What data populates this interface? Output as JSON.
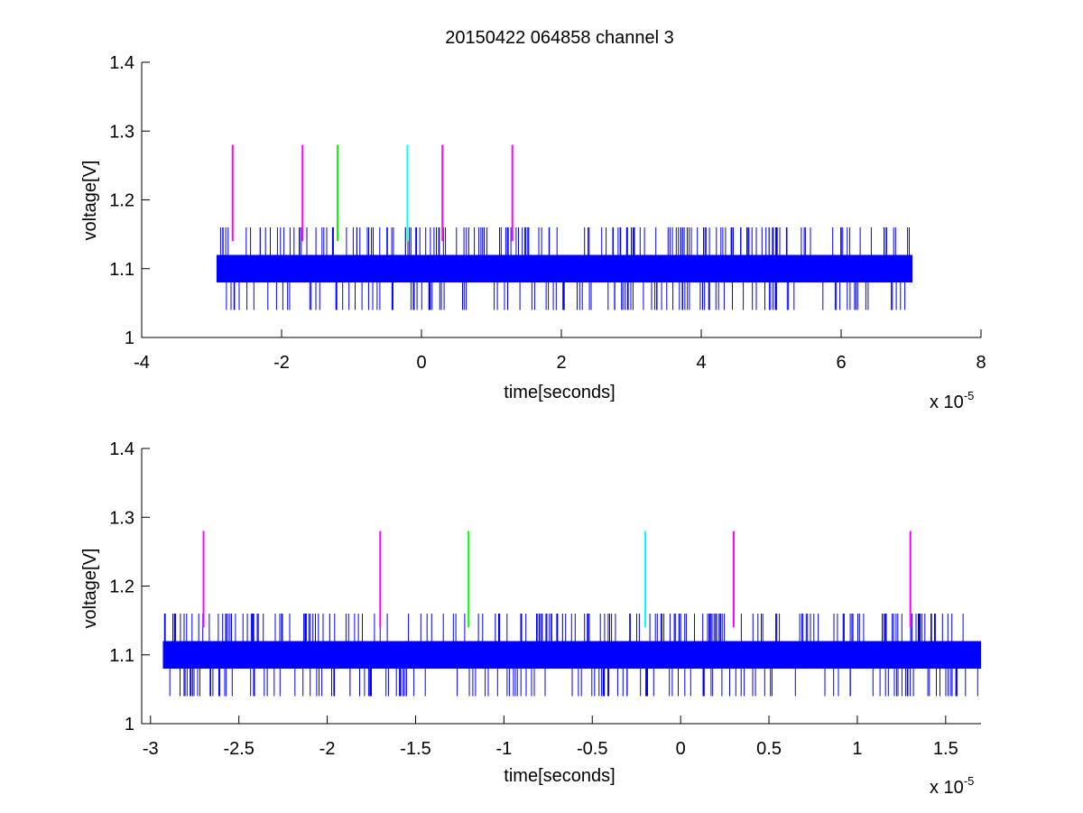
{
  "title": "20150422 064858 channel 3",
  "chart_data": [
    {
      "type": "line",
      "xlabel": "time[seconds]",
      "ylabel": "voltage[V]",
      "x_multiplier_label": "x 10",
      "x_multiplier_exp": "-5",
      "xlim": [
        -4,
        8
      ],
      "ylim": [
        1,
        1.4
      ],
      "xticks": [
        -4,
        -2,
        0,
        2,
        4,
        6,
        8
      ],
      "xtick_labels": [
        "-4",
        "-2",
        "0",
        "2",
        "4",
        "6",
        "8"
      ],
      "yticks": [
        1,
        1.1,
        1.2,
        1.3,
        1.4
      ],
      "ytick_labels": [
        "1",
        "1.1",
        "1.2",
        "1.3",
        "1.4"
      ],
      "series": [
        {
          "color": "#0000ff",
          "signal": {
            "x_range": [
              -2.93,
              7.02
            ],
            "band": [
              1.08,
              1.12
            ],
            "upper_spike": 1.16,
            "lower_spike": 1.04
          }
        }
      ],
      "markers": [
        {
          "x": -2.7,
          "y": [
            1.14,
            1.28
          ],
          "color": "#ff00ff"
        },
        {
          "x": -1.7,
          "y": [
            1.14,
            1.28
          ],
          "color": "#ff00ff"
        },
        {
          "x": -1.2,
          "y": [
            1.14,
            1.28
          ],
          "color": "#00ff00"
        },
        {
          "x": -0.2,
          "y": [
            1.14,
            1.28
          ],
          "color": "#00ffff"
        },
        {
          "x": 0.3,
          "y": [
            1.14,
            1.28
          ],
          "color": "#ff00ff"
        },
        {
          "x": 1.3,
          "y": [
            1.14,
            1.28
          ],
          "color": "#ff00ff"
        }
      ],
      "grid": false
    },
    {
      "type": "line",
      "xlabel": "time[seconds]",
      "ylabel": "voltage[V]",
      "x_multiplier_label": "x 10",
      "x_multiplier_exp": "-5",
      "xlim": [
        -3.05,
        1.7
      ],
      "ylim": [
        1,
        1.4
      ],
      "xticks": [
        -3,
        -2.5,
        -2,
        -1.5,
        -1,
        -0.5,
        0,
        0.5,
        1,
        1.5
      ],
      "xtick_labels": [
        "-3",
        "-2.5",
        "-2",
        "-1.5",
        "-1",
        "-0.5",
        "0",
        "0.5",
        "1",
        "1.5"
      ],
      "yticks": [
        1,
        1.1,
        1.2,
        1.3,
        1.4
      ],
      "ytick_labels": [
        "1",
        "1.1",
        "1.2",
        "1.3",
        "1.4"
      ],
      "series": [
        {
          "color": "#0000ff",
          "signal": {
            "x_range": [
              -2.93,
              1.7
            ],
            "band": [
              1.08,
              1.12
            ],
            "upper_spike": 1.16,
            "lower_spike": 1.04
          }
        }
      ],
      "markers": [
        {
          "x": -2.7,
          "y": [
            1.14,
            1.28
          ],
          "color": "#ff00ff"
        },
        {
          "x": -1.7,
          "y": [
            1.14,
            1.28
          ],
          "color": "#ff00ff"
        },
        {
          "x": -1.2,
          "y": [
            1.14,
            1.28
          ],
          "color": "#00ff00"
        },
        {
          "x": -0.2,
          "y": [
            1.14,
            1.28
          ],
          "color": "#00ffff"
        },
        {
          "x": 0.3,
          "y": [
            1.14,
            1.28
          ],
          "color": "#ff00ff"
        },
        {
          "x": 1.3,
          "y": [
            1.14,
            1.28
          ],
          "color": "#ff00ff"
        }
      ],
      "grid": false
    }
  ]
}
